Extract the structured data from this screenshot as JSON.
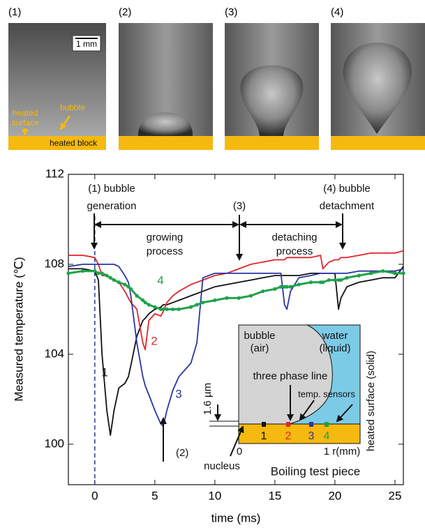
{
  "photos": {
    "labels": [
      "(1)",
      "(2)",
      "(3)",
      "(4)"
    ],
    "scale_bar": "1 mm",
    "annotations": [
      "heated",
      "surface",
      "bubble",
      "heated block"
    ]
  },
  "chart_data": {
    "type": "line",
    "x_label": "time (ms)",
    "y_label": "Measured temperature (℃)",
    "xlim": [
      -2.2,
      25.7
    ],
    "ylim": [
      98.2,
      112
    ],
    "xticks": [
      0,
      5,
      10,
      15,
      20,
      25
    ],
    "yticks": [
      100,
      104,
      108,
      112
    ],
    "vline": 0,
    "vline_color": "#2b3a9a",
    "x": [
      -2.2,
      -1,
      0,
      0.3,
      0.6,
      1,
      1.3,
      1.6,
      2,
      2.5,
      2.8,
      3,
      3.5,
      4,
      4.2,
      4.5,
      5,
      5.5,
      5.7,
      6,
      6.5,
      7,
      8,
      8.5,
      9,
      10,
      11,
      12,
      13,
      14,
      15,
      15.5,
      15.8,
      16,
      16.3,
      17,
      18,
      18.8,
      19,
      19.5,
      20,
      20.3,
      20.5,
      21,
      22,
      23,
      24,
      25,
      25.7
    ],
    "series": [
      {
        "name": "1",
        "color": "#111111",
        "values": [
          107.8,
          107.8,
          107.7,
          107.3,
          104,
          101.5,
          100.4,
          101.5,
          102.5,
          102.7,
          103,
          103.5,
          104.8,
          105.5,
          105.6,
          105.8,
          106,
          106.1,
          106.2,
          106.2,
          106.3,
          106.4,
          106.6,
          106.7,
          106.8,
          107,
          107.1,
          107.2,
          107.3,
          107.4,
          107.5,
          107.5,
          107.5,
          107.5,
          107.5,
          107.5,
          107.6,
          107.6,
          107.6,
          107.6,
          107.6,
          106.0,
          106.5,
          107,
          107.2,
          107.3,
          107.4,
          107.4,
          107.9
        ]
      },
      {
        "name": "2",
        "color": "#e0262a",
        "values": [
          108.4,
          108.4,
          108.3,
          108.0,
          107.5,
          107.5,
          107.4,
          107.3,
          107.2,
          106.8,
          106.5,
          106.3,
          106,
          104.5,
          104.2,
          105.5,
          105.8,
          105.7,
          105.9,
          106.3,
          106.6,
          106.8,
          107.1,
          107.2,
          107.3,
          107.5,
          107.6,
          107.8,
          108,
          108.1,
          108.2,
          108.2,
          108.2,
          108.3,
          108.3,
          108.3,
          108.3,
          108.4,
          107.8,
          108.1,
          108.2,
          108.2,
          108.3,
          108.3,
          108.4,
          108.5,
          108.5,
          108.5,
          108.6
        ]
      },
      {
        "name": "3",
        "color": "#2b35a3",
        "values": [
          107.9,
          108,
          108,
          108,
          108,
          108,
          108,
          108,
          107.9,
          107.5,
          107.2,
          106.6,
          104.5,
          103,
          102.6,
          102.2,
          101.5,
          100.9,
          100.8,
          101.5,
          102.4,
          103,
          103.6,
          104.5,
          107.4,
          107.6,
          107.6,
          107.6,
          107.6,
          107.6,
          107.6,
          107.6,
          106.2,
          106,
          106.8,
          107.4,
          107.5,
          107.6,
          107.6,
          107.6,
          107.6,
          107.6,
          107.6,
          107.6,
          107.7,
          107.7,
          107.7,
          107.7,
          107.8
        ]
      },
      {
        "name": "4",
        "color": "#1fa24a",
        "values": [
          107.6,
          107.7,
          107.7,
          107.6,
          107.6,
          107.5,
          107.4,
          107.3,
          107.2,
          107.1,
          107,
          106.9,
          106.6,
          106.4,
          106.3,
          106.2,
          106.1,
          106,
          106,
          106,
          106,
          106,
          106.1,
          106.2,
          106.3,
          106.4,
          106.5,
          106.5,
          106.6,
          106.8,
          106.9,
          107,
          107,
          107,
          107,
          107.1,
          107.2,
          107.2,
          107.2,
          107.3,
          107.3,
          107.3,
          107.3,
          107.4,
          107.5,
          107.6,
          107.7,
          107.6,
          107.6
        ]
      }
    ],
    "annotations": [
      "(1) bubble",
      "generation",
      "(3)",
      "(4) bubble",
      "detachment",
      "growing",
      "process",
      "detaching",
      "process",
      "(2)"
    ],
    "inset": {
      "texts": [
        "bubble",
        "(air)",
        "water",
        "(liquid)",
        "three phase line",
        "temp. sensors",
        "1.6 µm",
        "heated surface (solid)",
        "0",
        "1 r(mm)",
        "nucleus",
        "Boiling test piece"
      ],
      "sensors": [
        "1",
        "2",
        "3",
        "4"
      ]
    }
  }
}
